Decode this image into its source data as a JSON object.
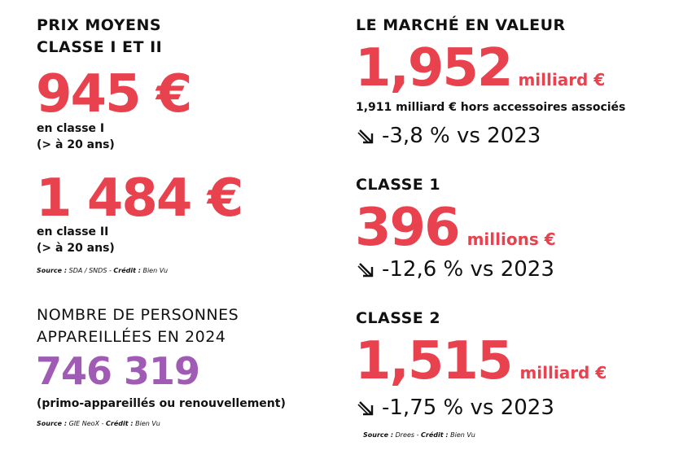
{
  "colors": {
    "accent": "#e8424f",
    "purple": "#a05bb5",
    "text": "#111111"
  },
  "left": {
    "prix": {
      "title_line1": "PRIX MOYENS",
      "title_line2": "CLASSE I ET II",
      "classe1_value": "945 €",
      "classe1_desc_line1": "en classe I",
      "classe1_desc_line2": "(> à 20 ans)",
      "classe2_value": "1 484 €",
      "classe2_desc_line1": "en classe II",
      "classe2_desc_line2": "(> à 20 ans)",
      "source_label": "Source :",
      "source_text": "SDA / SNDS -",
      "credit_label": "Crédit :",
      "credit_text": "Bien Vu"
    },
    "personnes": {
      "title_line1": "NOMBRE DE PERSONNES",
      "title_line2": "APPAREILLÉES EN 2024",
      "value": "746 319",
      "desc": "(primo-appareillés ou renouvellement)",
      "source_label": "Source :",
      "source_text": "GIE NeoX -",
      "credit_label": "Crédit :",
      "credit_text": "Bien Vu"
    }
  },
  "right": {
    "marche": {
      "title": "LE MARCHÉ EN VALEUR",
      "value": "1,952",
      "unit": "milliard €",
      "detail": "1,911 milliard € hors accessoires associés",
      "trend_icon": "arrow-down-right-icon",
      "trend": "-3,8 % vs 2023"
    },
    "classe1": {
      "title": "CLASSE 1",
      "value": "396",
      "unit": "millions €",
      "trend_icon": "arrow-down-right-icon",
      "trend": "-12,6 % vs 2023"
    },
    "classe2": {
      "title": "CLASSE 2",
      "value": "1,515",
      "unit": "milliard €",
      "trend_icon": "arrow-down-right-icon",
      "trend": "-1,75 % vs 2023",
      "source_label": "Source :",
      "source_text": "Drees -",
      "credit_label": "Crédit :",
      "credit_text": "Bien Vu"
    }
  }
}
